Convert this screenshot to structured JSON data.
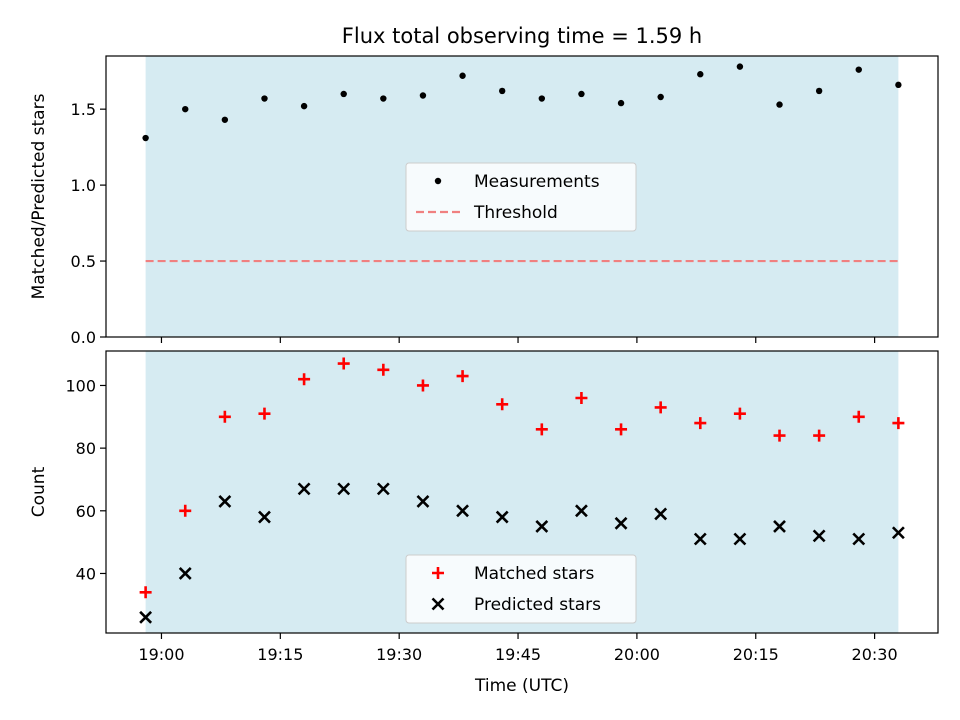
{
  "chart_data": {
    "title": "Flux total observing time = 1.59 h",
    "xlabel": "Time (UTC)",
    "xlim": [
      "18:53",
      "20:38"
    ],
    "x_ticks": [
      "19:00",
      "19:15",
      "19:30",
      "19:45",
      "20:00",
      "20:15",
      "20:30"
    ],
    "observing_window": [
      "18:58",
      "20:33"
    ],
    "window_color": "#add8e6",
    "times": [
      "18:58",
      "19:03",
      "19:08",
      "19:13",
      "19:18",
      "19:23",
      "19:28",
      "19:33",
      "19:38",
      "19:43",
      "19:48",
      "19:53",
      "19:58",
      "20:03",
      "20:08",
      "20:13",
      "20:18",
      "20:23",
      "20:28",
      "20:33"
    ],
    "panels": [
      {
        "type": "scatter",
        "ylabel": "Matched/Predicted stars",
        "ylim": [
          0,
          1.85
        ],
        "y_ticks": [
          0.0,
          0.5,
          1.0,
          1.5
        ],
        "y_tick_labels": [
          "0.0",
          "0.5",
          "1.0",
          "1.5"
        ],
        "legend_position": "center",
        "series": [
          {
            "name": "Measurements",
            "marker": "dot",
            "color": "#000000",
            "values": [
              1.31,
              1.5,
              1.43,
              1.57,
              1.52,
              1.6,
              1.57,
              1.59,
              1.72,
              1.62,
              1.57,
              1.6,
              1.54,
              1.58,
              1.73,
              1.78,
              1.53,
              1.62,
              1.76,
              1.66
            ]
          }
        ],
        "threshold": {
          "name": "Threshold",
          "value": 0.5,
          "color": "#f08080",
          "style": "dashed"
        }
      },
      {
        "type": "scatter",
        "ylabel": "Count",
        "ylim": [
          21,
          111
        ],
        "y_ticks": [
          40,
          60,
          80,
          100
        ],
        "y_tick_labels": [
          "40",
          "60",
          "80",
          "100"
        ],
        "legend_position": "lower center",
        "series": [
          {
            "name": "Matched stars",
            "marker": "plus",
            "color": "#ff0000",
            "values": [
              34,
              60,
              90,
              91,
              102,
              107,
              105,
              100,
              103,
              94,
              86,
              96,
              86,
              93,
              88,
              91,
              84,
              84,
              90,
              88
            ]
          },
          {
            "name": "Predicted stars",
            "marker": "x",
            "color": "#000000",
            "values": [
              26,
              40,
              63,
              58,
              67,
              67,
              67,
              63,
              60,
              58,
              55,
              60,
              56,
              59,
              51,
              51,
              55,
              52,
              51,
              53
            ]
          }
        ]
      }
    ]
  }
}
